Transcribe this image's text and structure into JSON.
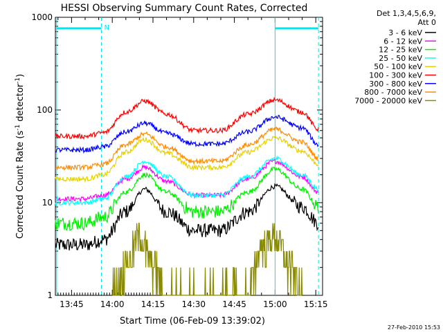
{
  "chart_data": {
    "type": "line",
    "title": "HESSI Observing Summary Count Rates, Corrected",
    "xlabel": "Start Time (06-Feb-09 13:39:02)",
    "ylabel_main": "Corrected Count Rate (s",
    "ylabel_sup1": "-1",
    "ylabel_mid": " detector",
    "ylabel_sup2": "-1",
    "ylabel_end": ")",
    "y_scale": "log",
    "ylim": [
      1,
      1000
    ],
    "x_range": [
      "13:39:02",
      "15:17:30"
    ],
    "grid": false,
    "legend_position": "right",
    "legend_header": [
      "Det 1,3,4,5,6,9,",
      "Att 0"
    ],
    "footer_timestamp": "27-Feb-2010 15:53",
    "x_tick_labels": [
      "13:45",
      "14:00",
      "14:15",
      "14:30",
      "14:45",
      "15:00",
      "15:15"
    ],
    "y_tick_labels": [
      "1",
      "10",
      "100",
      "1000"
    ],
    "annotations": {
      "night_marker": "N",
      "attenuator_bar_color": "#00e5ee",
      "saa_line_color": "#00e5ee"
    },
    "series": [
      {
        "name": "3 - 6 keV",
        "color": "#000000",
        "x": [
          "13:39",
          "13:50",
          "13:57",
          "14:05",
          "14:12",
          "14:20",
          "14:30",
          "14:40",
          "14:50",
          "15:00",
          "15:10",
          "15:16"
        ],
        "y": [
          3.5,
          3.5,
          4,
          8,
          14,
          8,
          5,
          5,
          8,
          15,
          9,
          6
        ]
      },
      {
        "name": "6 - 12 keV",
        "color": "#ff00ff",
        "x": [
          "13:39",
          "13:50",
          "13:57",
          "14:05",
          "14:12",
          "14:20",
          "14:30",
          "14:40",
          "14:50",
          "15:00",
          "15:10",
          "15:16"
        ],
        "y": [
          11,
          11,
          12,
          18,
          24,
          17,
          12,
          12,
          18,
          28,
          19,
          13
        ]
      },
      {
        "name": "12 - 25 keV",
        "color": "#00ee00",
        "x": [
          "13:39",
          "13:50",
          "13:57",
          "14:05",
          "14:12",
          "14:20",
          "14:30",
          "14:40",
          "14:50",
          "15:00",
          "15:10",
          "15:16"
        ],
        "y": [
          6,
          6,
          7,
          13,
          20,
          13,
          8,
          8,
          13,
          23,
          14,
          9
        ]
      },
      {
        "name": "25 - 50 keV",
        "color": "#00ffff",
        "x": [
          "13:39",
          "13:50",
          "13:57",
          "14:05",
          "14:12",
          "14:20",
          "14:30",
          "14:40",
          "14:50",
          "15:00",
          "15:10",
          "15:16"
        ],
        "y": [
          10,
          10,
          11,
          19,
          28,
          19,
          12,
          12,
          19,
          30,
          20,
          14
        ]
      },
      {
        "name": "50 - 100 keV",
        "color": "#e6d200",
        "x": [
          "13:39",
          "13:50",
          "13:57",
          "14:05",
          "14:12",
          "14:20",
          "14:30",
          "14:40",
          "14:50",
          "15:00",
          "15:10",
          "15:16"
        ],
        "y": [
          18,
          18,
          20,
          35,
          48,
          34,
          24,
          24,
          35,
          50,
          36,
          26
        ]
      },
      {
        "name": "100 - 300 keV",
        "color": "#ff0000",
        "x": [
          "13:39",
          "13:50",
          "13:57",
          "14:05",
          "14:12",
          "14:20",
          "14:30",
          "14:40",
          "14:50",
          "15:00",
          "15:10",
          "15:16"
        ],
        "y": [
          52,
          52,
          57,
          95,
          125,
          90,
          60,
          60,
          90,
          128,
          95,
          62
        ]
      },
      {
        "name": "300 - 800 keV",
        "color": "#0000ff",
        "x": [
          "13:39",
          "13:50",
          "13:57",
          "14:05",
          "14:12",
          "14:20",
          "14:30",
          "14:40",
          "14:50",
          "15:00",
          "15:10",
          "15:16"
        ],
        "y": [
          37,
          37,
          40,
          58,
          72,
          56,
          43,
          43,
          58,
          84,
          64,
          42
        ]
      },
      {
        "name": "800 - 7000 keV",
        "color": "#ff8c00",
        "x": [
          "13:39",
          "13:50",
          "13:57",
          "14:05",
          "14:12",
          "14:20",
          "14:30",
          "14:40",
          "14:50",
          "15:00",
          "15:10",
          "15:16"
        ],
        "y": [
          24,
          24,
          26,
          42,
          55,
          40,
          28,
          28,
          42,
          62,
          45,
          30
        ]
      },
      {
        "name": "7000 - 20000 keV",
        "color": "#8b8b00",
        "x": [
          "14:00",
          "14:05",
          "14:10",
          "14:15",
          "14:20",
          "14:50",
          "14:55",
          "15:00",
          "15:05",
          "15:10"
        ],
        "y": [
          1,
          2,
          4,
          2,
          1,
          1,
          3,
          4,
          2,
          1
        ]
      }
    ]
  }
}
